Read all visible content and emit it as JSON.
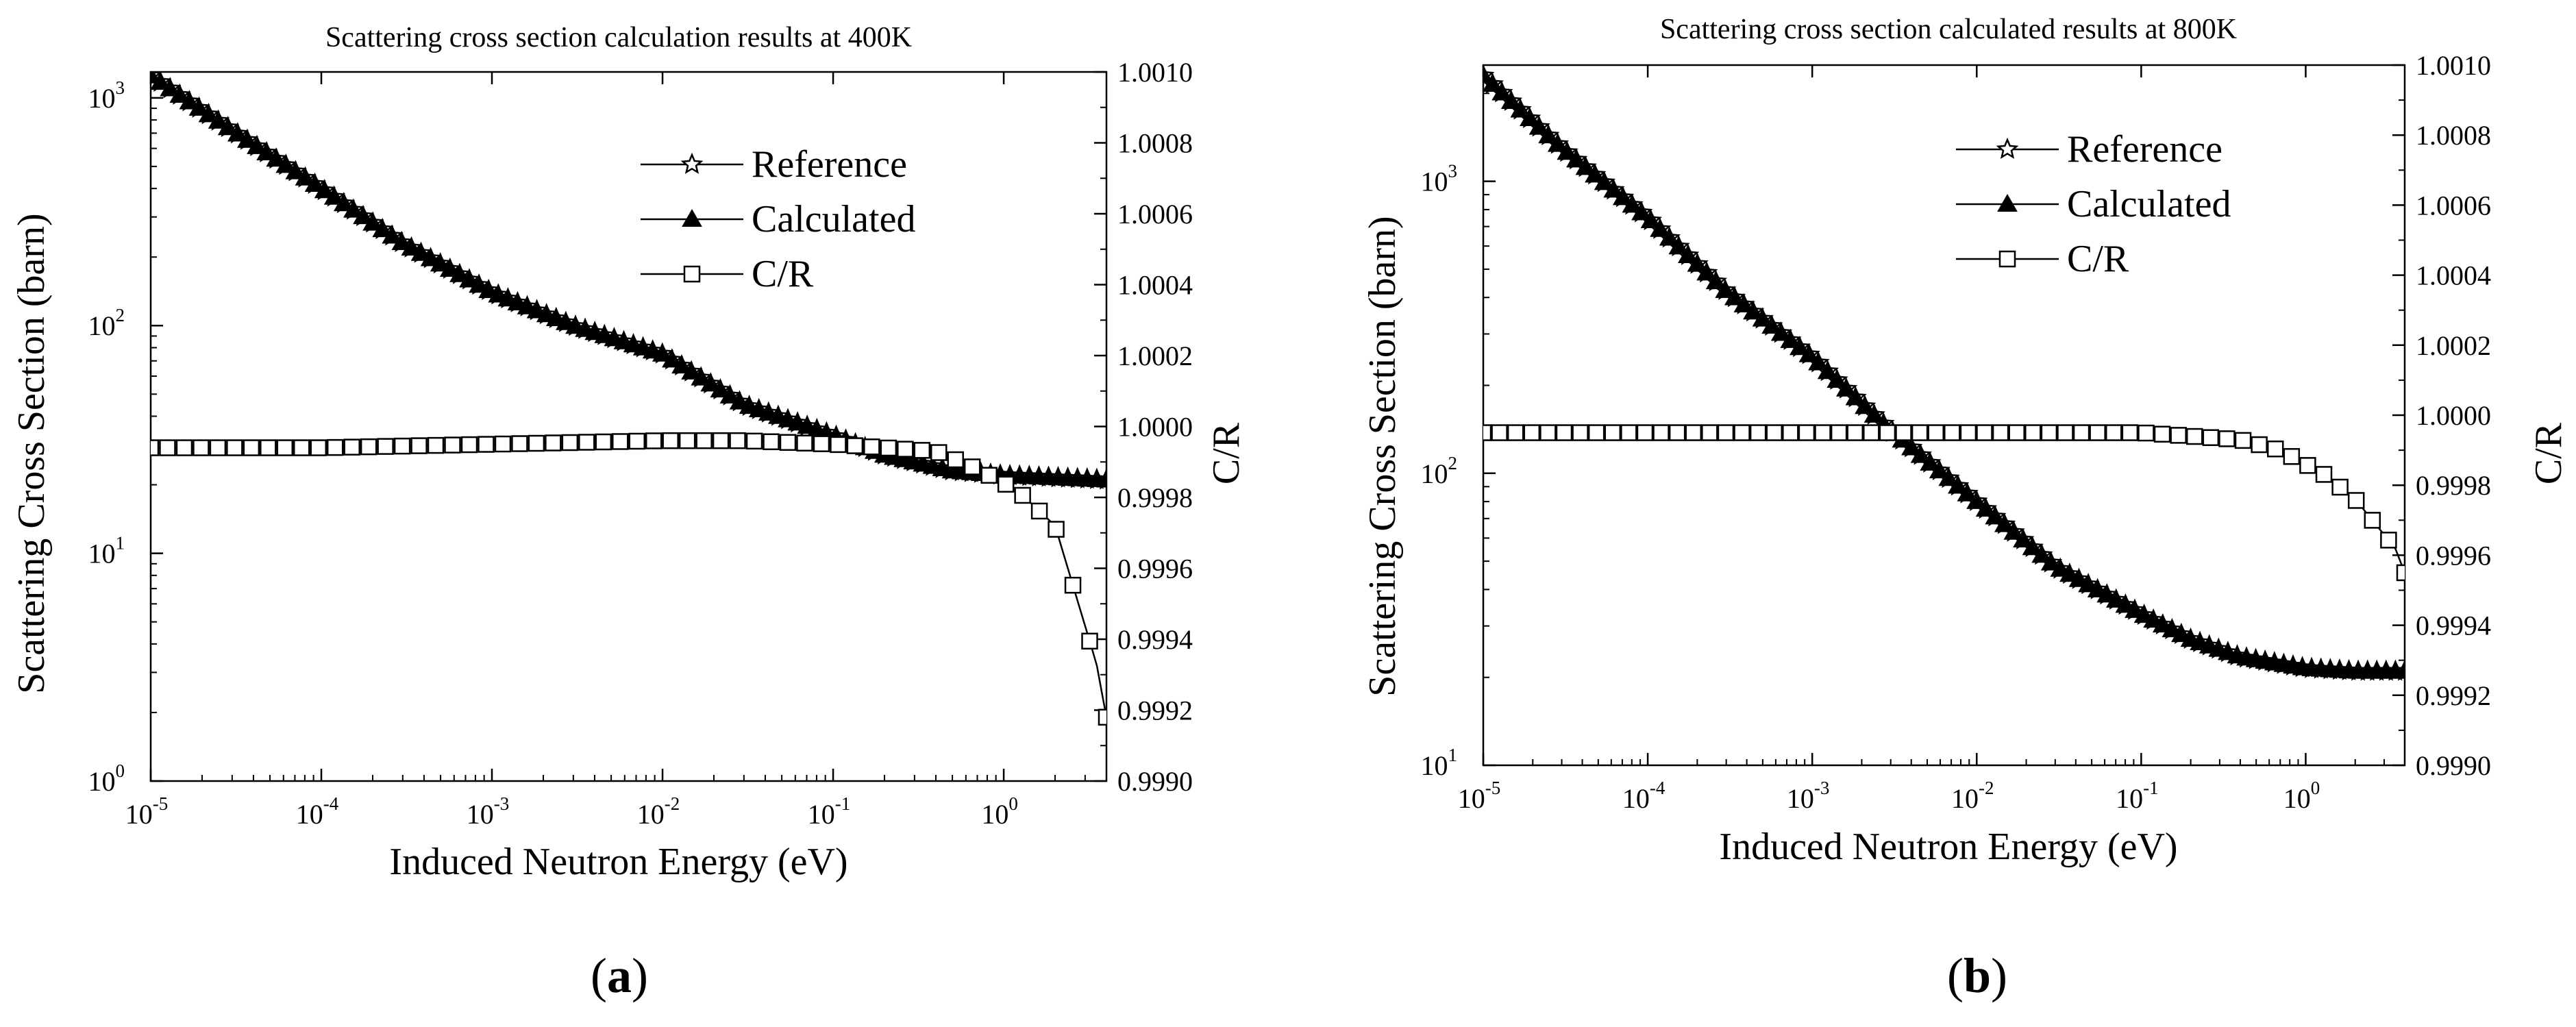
{
  "chart_data": [
    {
      "panel_label": "a",
      "type": "line",
      "title": "Scattering cross section calculation results at 400K",
      "xlabel": "Induced Neutron Energy (eV)",
      "ylabel": "Scattering Cross Section (barn)",
      "y2label": "C/R",
      "xscale": "log",
      "yscale": "log",
      "xlim": [
        1e-05,
        4
      ],
      "ylim": [
        1,
        1300
      ],
      "y2lim": [
        0.999,
        1.001
      ],
      "xticks": [
        {
          "base": "10",
          "exp": "-5"
        },
        {
          "base": "10",
          "exp": "-4"
        },
        {
          "base": "10",
          "exp": "-3"
        },
        {
          "base": "10",
          "exp": "-2"
        },
        {
          "base": "10",
          "exp": "-1"
        },
        {
          "base": "10",
          "exp": "0"
        }
      ],
      "xtick_values": [
        1e-05,
        0.0001,
        0.001,
        0.01,
        0.1,
        1
      ],
      "yticks": [
        {
          "base": "10",
          "exp": "0"
        },
        {
          "base": "10",
          "exp": "1"
        },
        {
          "base": "10",
          "exp": "2"
        },
        {
          "base": "10",
          "exp": "3"
        }
      ],
      "ytick_values": [
        1,
        10,
        100,
        1000
      ],
      "y2ticks": [
        "0.9990",
        "0.9992",
        "0.9994",
        "0.9996",
        "0.9998",
        "1.0000",
        "1.0002",
        "1.0004",
        "1.0006",
        "1.0008",
        "1.0010"
      ],
      "y2tick_values": [
        0.999,
        0.9992,
        0.9994,
        0.9996,
        0.9998,
        1.0,
        1.0002,
        1.0004,
        1.0006,
        1.0008,
        1.001
      ],
      "legend_position": "top-right",
      "series": [
        {
          "name": "Reference",
          "axis": "left",
          "marker": "star-open",
          "x": [
            1e-05,
            3e-05,
            0.0001,
            0.0003,
            0.001,
            0.003,
            0.01,
            0.03,
            0.1,
            0.2,
            0.5,
            1,
            2,
            4
          ],
          "y": [
            1250,
            720,
            400,
            230,
            140,
            100,
            75,
            45,
            33,
            27,
            23,
            22,
            21.5,
            21
          ]
        },
        {
          "name": "Calculated",
          "axis": "left",
          "marker": "triangle-filled",
          "x": [
            1e-05,
            3e-05,
            0.0001,
            0.0003,
            0.001,
            0.003,
            0.01,
            0.03,
            0.1,
            0.2,
            0.5,
            1,
            2,
            4
          ],
          "y": [
            1250,
            720,
            400,
            230,
            140,
            100,
            75,
            45,
            33,
            27,
            23,
            22,
            21.5,
            21
          ]
        },
        {
          "name": "C/R",
          "axis": "right",
          "marker": "square-open",
          "x": [
            1e-05,
            0.0001,
            0.001,
            0.01,
            0.03,
            0.1,
            0.2,
            0.4,
            0.7,
            1.2,
            2,
            3.5,
            4
          ],
          "y": [
            0.99994,
            0.99994,
            0.99995,
            0.99996,
            0.99996,
            0.99995,
            0.99994,
            0.99993,
            0.99988,
            0.99982,
            0.99972,
            0.99933,
            0.99918
          ]
        }
      ]
    },
    {
      "panel_label": "b",
      "type": "line",
      "title": "Scattering cross section calculated results at 800K",
      "xlabel": "Induced Neutron Energy (eV)",
      "ylabel": "Scattering Cross Section (barn)",
      "y2label": "C/R",
      "xscale": "log",
      "yscale": "log",
      "xlim": [
        1e-05,
        4
      ],
      "ylim": [
        10,
        2500
      ],
      "y2lim": [
        0.999,
        1.001
      ],
      "xticks": [
        {
          "base": "10",
          "exp": "-5"
        },
        {
          "base": "10",
          "exp": "-4"
        },
        {
          "base": "10",
          "exp": "-3"
        },
        {
          "base": "10",
          "exp": "-2"
        },
        {
          "base": "10",
          "exp": "-1"
        },
        {
          "base": "10",
          "exp": "0"
        }
      ],
      "xtick_values": [
        1e-05,
        0.0001,
        0.001,
        0.01,
        0.1,
        1
      ],
      "yticks": [
        {
          "base": "10",
          "exp": "1"
        },
        {
          "base": "10",
          "exp": "2"
        },
        {
          "base": "10",
          "exp": "3"
        }
      ],
      "ytick_values": [
        10,
        100,
        1000
      ],
      "y2ticks": [
        "0.9990",
        "0.9992",
        "0.9994",
        "0.9996",
        "0.9998",
        "1.0000",
        "1.0002",
        "1.0004",
        "1.0006",
        "1.0008",
        "1.0010"
      ],
      "y2tick_values": [
        0.999,
        0.9992,
        0.9994,
        0.9996,
        0.9998,
        1.0,
        1.0002,
        1.0004,
        1.0006,
        1.0008,
        1.001
      ],
      "legend_position": "top-right",
      "series": [
        {
          "name": "Reference",
          "axis": "left",
          "marker": "star-open",
          "x": [
            1e-05,
            3e-05,
            0.0001,
            0.0003,
            0.001,
            0.003,
            0.01,
            0.03,
            0.1,
            0.2,
            0.4,
            1,
            2,
            4
          ],
          "y": [
            2300,
            1300,
            750,
            420,
            250,
            140,
            80,
            48,
            33,
            27,
            23.5,
            21.5,
            21,
            21
          ]
        },
        {
          "name": "Calculated",
          "axis": "left",
          "marker": "triangle-filled",
          "x": [
            1e-05,
            3e-05,
            0.0001,
            0.0003,
            0.001,
            0.003,
            0.01,
            0.03,
            0.1,
            0.2,
            0.4,
            1,
            2,
            4
          ],
          "y": [
            2300,
            1300,
            750,
            420,
            250,
            140,
            80,
            48,
            33,
            27,
            23.5,
            21.5,
            21,
            21
          ]
        },
        {
          "name": "C/R",
          "axis": "right",
          "marker": "square-open",
          "x": [
            1e-05,
            0.0001,
            0.001,
            0.01,
            0.1,
            0.2,
            0.4,
            0.7,
            1.3,
            2,
            3.5,
            4
          ],
          "y": [
            0.99995,
            0.99995,
            0.99995,
            0.99995,
            0.99995,
            0.99994,
            0.99993,
            0.9999,
            0.99983,
            0.99976,
            0.99962,
            0.99955
          ]
        }
      ]
    }
  ]
}
